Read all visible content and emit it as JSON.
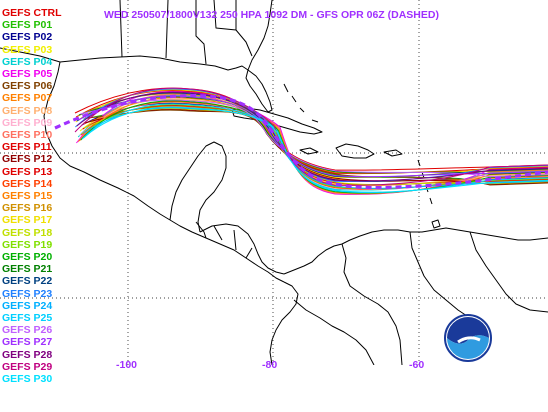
{
  "title": "WED 250507/1800V132  250 HPA 1092 DM - GFS OPR 06Z (DASHED)",
  "members": [
    {
      "label": "GEFS CTRL",
      "color": "#e00000"
    },
    {
      "label": "GEFS P01",
      "color": "#20c000"
    },
    {
      "label": "GEFS P02",
      "color": "#000090"
    },
    {
      "label": "GEFS P03",
      "color": "#f0f000"
    },
    {
      "label": "GEFS P04",
      "color": "#00d0d0"
    },
    {
      "label": "GEFS P05",
      "color": "#f000f0"
    },
    {
      "label": "GEFS P06",
      "color": "#804000"
    },
    {
      "label": "GEFS P07",
      "color": "#ff8000"
    },
    {
      "label": "GEFS P08",
      "color": "#ffb070"
    },
    {
      "label": "GEFS P09",
      "color": "#ffb0d0"
    },
    {
      "label": "GEFS P10",
      "color": "#ff7060"
    },
    {
      "label": "GEFS P11",
      "color": "#e00000"
    },
    {
      "label": "GEFS P12",
      "color": "#900000"
    },
    {
      "label": "GEFS P13",
      "color": "#e00000"
    },
    {
      "label": "GEFS P14",
      "color": "#ff4000"
    },
    {
      "label": "GEFS P15",
      "color": "#ff8000"
    },
    {
      "label": "GEFS P16",
      "color": "#d09000"
    },
    {
      "label": "GEFS P17",
      "color": "#f0e000"
    },
    {
      "label": "GEFS P18",
      "color": "#c0e000"
    },
    {
      "label": "GEFS P19",
      "color": "#80e000"
    },
    {
      "label": "GEFS P20",
      "color": "#00b000"
    },
    {
      "label": "GEFS P21",
      "color": "#008000"
    },
    {
      "label": "GEFS P22",
      "color": "#004080"
    },
    {
      "label": "GEFS P23",
      "color": "#2080ff"
    },
    {
      "label": "GEFS P24",
      "color": "#00b0ff"
    },
    {
      "label": "GEFS P25",
      "color": "#00d0ff"
    },
    {
      "label": "GEFS P26",
      "color": "#c060ff"
    },
    {
      "label": "GEFS P27",
      "color": "#a030ff"
    },
    {
      "label": "GEFS P28",
      "color": "#800080"
    },
    {
      "label": "GEFS P29",
      "color": "#c00080"
    },
    {
      "label": "GEFS P30",
      "color": "#00e0ff"
    }
  ],
  "longitude_ticks": [
    "-100",
    "-80",
    "-60"
  ],
  "operational_color": "#a030ff",
  "background_color": "#ffffff",
  "coastline_color": "#000000",
  "logo_text": "NOAA"
}
